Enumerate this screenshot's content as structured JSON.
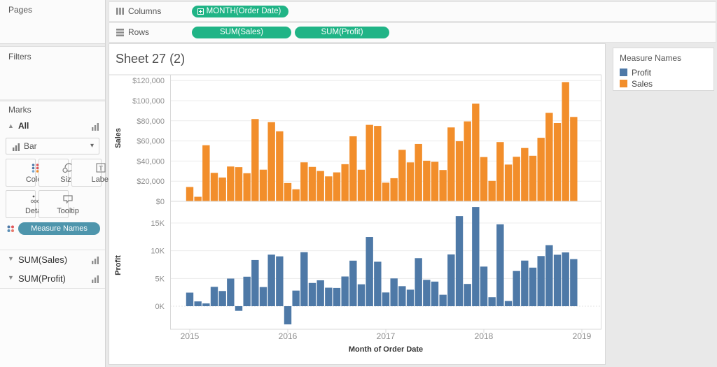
{
  "shelves": {
    "columns": {
      "label": "Columns",
      "pills": [
        {
          "label": "MONTH(Order Date)"
        }
      ]
    },
    "rows": {
      "label": "Rows",
      "pills": [
        {
          "label": "SUM(Sales)"
        },
        {
          "label": "SUM(Profit)"
        }
      ]
    }
  },
  "sidebar": {
    "pages_label": "Pages",
    "filters_label": "Filters",
    "marks_label": "Marks",
    "marks_card": {
      "scope_label": "All",
      "mark_type": "Bar",
      "buttons": [
        {
          "label": "Color"
        },
        {
          "label": "Size"
        },
        {
          "label": "Label"
        },
        {
          "label": "Detail"
        },
        {
          "label": "Tooltip"
        }
      ],
      "encoding_pill": "Measure Names"
    },
    "fields": [
      {
        "label": "SUM(Sales)"
      },
      {
        "label": "SUM(Profit)"
      }
    ]
  },
  "sheet": {
    "title": "Sheet 27 (2)"
  },
  "legend": {
    "title": "Measure Names",
    "items": [
      {
        "label": "Profit",
        "color": "#4e79a7"
      },
      {
        "label": "Sales",
        "color": "#f28e2b"
      }
    ]
  },
  "colors": {
    "pill_green": "#20b486",
    "pill_blue": "#4e95ac",
    "sales": "#f28e2b",
    "profit": "#4e79a7"
  },
  "chart_data": {
    "type": "bar",
    "title": "Sheet 27 (2)",
    "xlabel": "Month of Order Date",
    "x_granularity": "month, Jan 2015 - Dec 2018",
    "x_tick_labels": [
      "2015",
      "2016",
      "2017",
      "2018",
      "2019"
    ],
    "legend_position": "right",
    "grid": true,
    "series": [
      {
        "name": "Sales",
        "axis_label": "Sales",
        "color": "#f28e2b",
        "axis_ticks": [
          "$0",
          "$20,000",
          "$40,000",
          "$60,000",
          "$80,000",
          "$100,000",
          "$120,000"
        ],
        "tick_step": 20000,
        "ylim": [
          0,
          126000
        ],
        "values": [
          14237,
          4520,
          55691,
          28295,
          23648,
          34595,
          33946,
          27909,
          81777,
          31453,
          78629,
          69545,
          18174,
          11951,
          38726,
          34195,
          30131,
          24797,
          28765,
          36898,
          64595,
          31404,
          75973,
          74920,
          18542,
          22978,
          51166,
          38679,
          56987,
          40344,
          39262,
          31115,
          73410,
          59691,
          79412,
          96999,
          43971,
          20301,
          58872,
          36522,
          44261,
          52982,
          45264,
          63121,
          87867,
          77777,
          118448,
          83829
        ]
      },
      {
        "name": "Profit",
        "axis_label": "Profit",
        "color": "#4e79a7",
        "axis_ticks": [
          "0K",
          "5K",
          "10K",
          "15K"
        ],
        "tick_step": 5000,
        "ylim": [
          -4200,
          18900
        ],
        "values": [
          2450,
          862,
          498,
          3489,
          2739,
          4978,
          -841,
          5318,
          8328,
          3448,
          9292,
          8983,
          -3281,
          2814,
          9732,
          4187,
          4667,
          3335,
          3289,
          5355,
          8209,
          3946,
          12474,
          8016,
          2475,
          5005,
          3611,
          2977,
          8662,
          4750,
          4433,
          2062,
          9328,
          16243,
          4011,
          17885,
          7140,
          1613,
          14751,
          933,
          6342,
          8223,
          6952,
          9040,
          10991,
          9275,
          9690,
          8483
        ]
      }
    ]
  }
}
